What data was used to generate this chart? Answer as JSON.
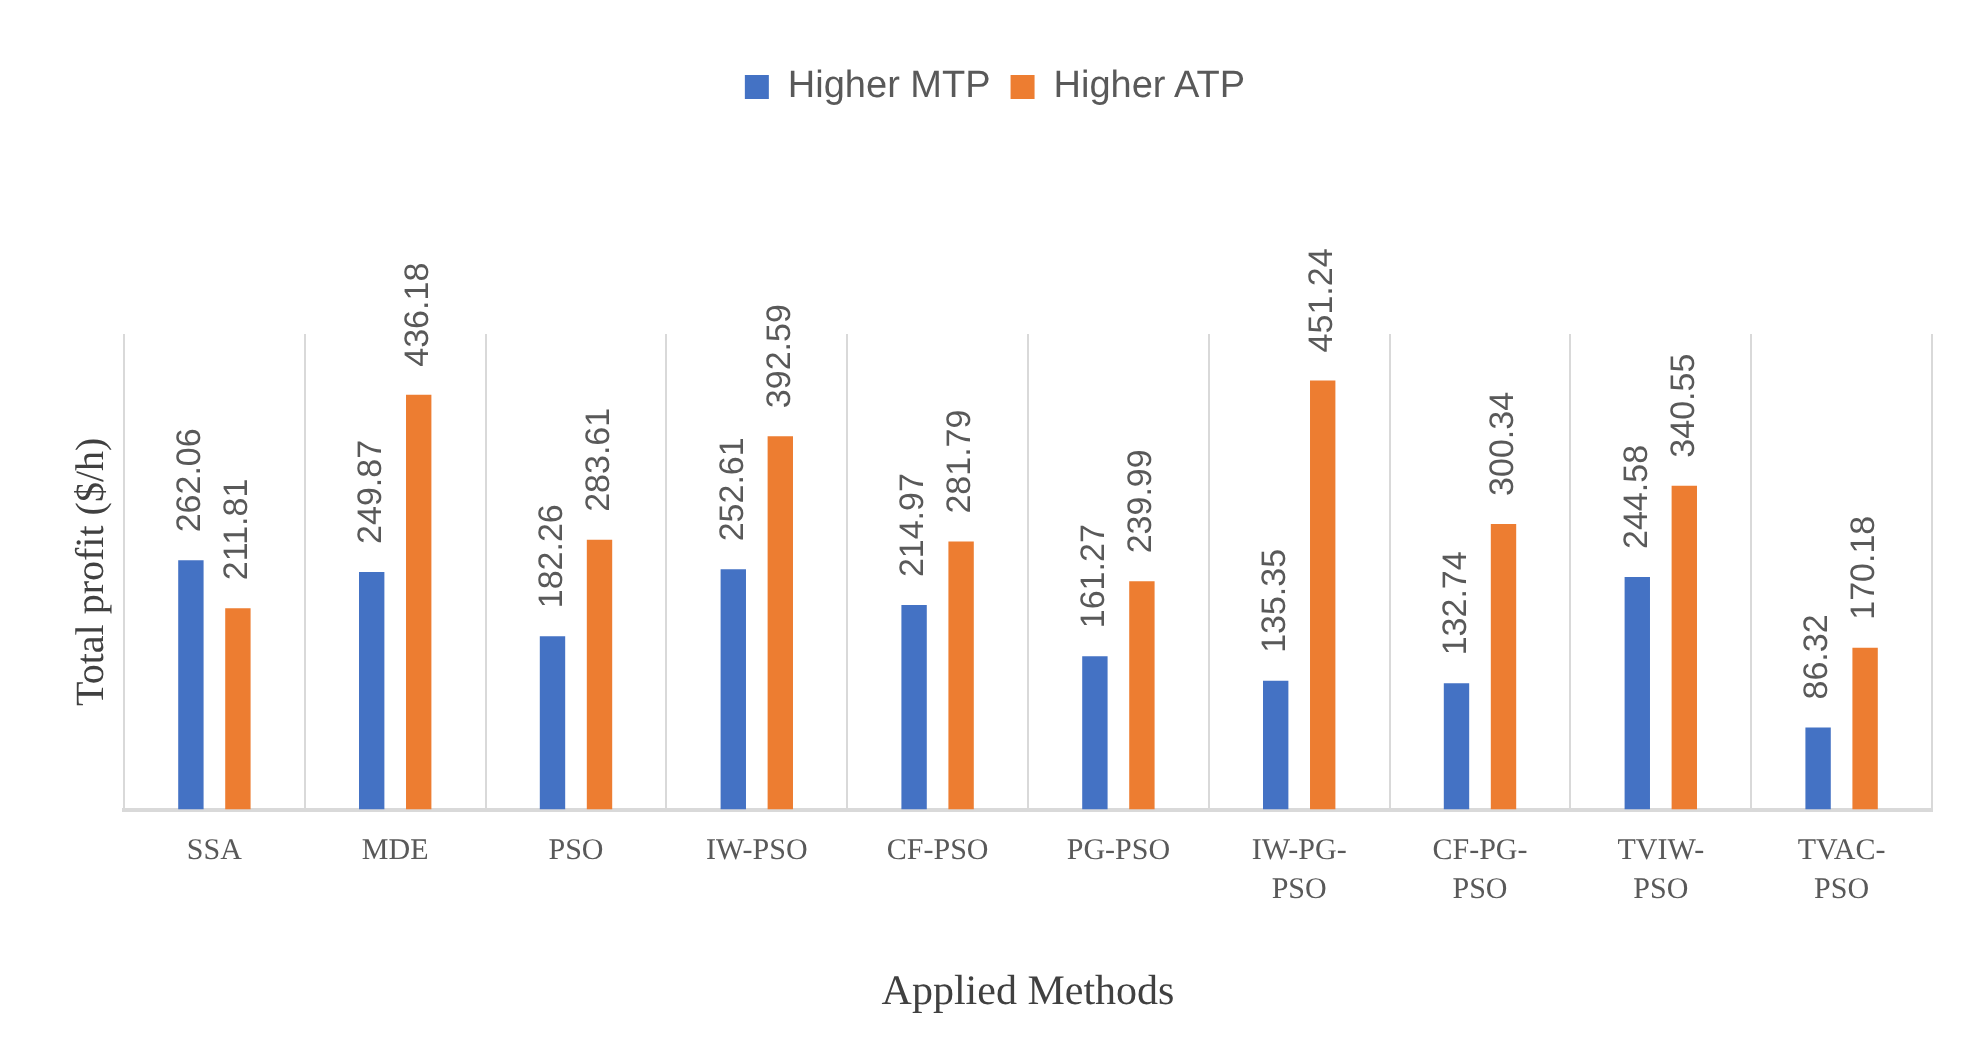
{
  "chart_data": {
    "type": "bar",
    "categories": [
      "SSA",
      "MDE",
      "PSO",
      "IW-PSO",
      "CF-PSO",
      "PG-PSO",
      "IW-PG-PSO",
      "CF-PG-PSO",
      "TVIW-PSO",
      "TVAC-PSO"
    ],
    "series": [
      {
        "name": "Higher MTP",
        "color": "#4472c4",
        "values": [
          262.06,
          249.87,
          182.26,
          252.61,
          214.97,
          161.27,
          135.35,
          132.74,
          244.58,
          86.32
        ]
      },
      {
        "name": "Higher ATP",
        "color": "#ed7d31",
        "values": [
          211.81,
          436.18,
          283.61,
          392.59,
          281.79,
          239.99,
          451.24,
          300.34,
          340.55,
          170.18
        ]
      }
    ],
    "xlabel": "Applied Methods",
    "ylabel": "Total profit ($/h)",
    "legend": "top",
    "grid": "x",
    "data_labels": true
  }
}
